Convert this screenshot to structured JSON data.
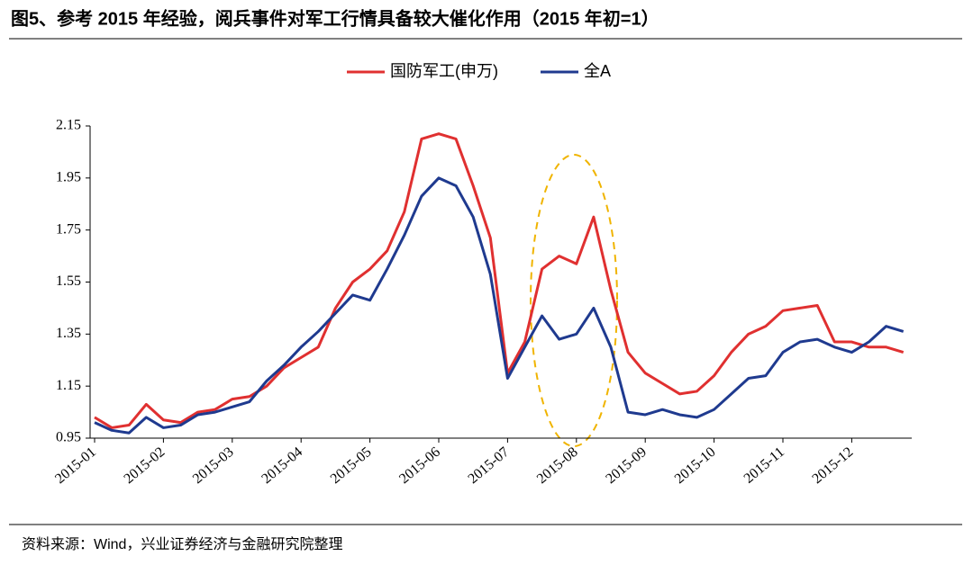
{
  "chart_data": {
    "type": "line",
    "title": "图5、参考 2015 年经验，阅兵事件对军工行情具备较大催化作用（2015 年初=1）",
    "source": "资料来源：Wind，兴业证券经济与金融研究院整理",
    "categories": [
      "2015-01",
      null,
      null,
      null,
      "2015-02",
      null,
      null,
      null,
      "2015-03",
      null,
      null,
      null,
      "2015-04",
      null,
      null,
      null,
      "2015-05",
      null,
      null,
      null,
      "2015-06",
      null,
      null,
      null,
      "2015-07",
      null,
      null,
      null,
      "2015-08",
      null,
      null,
      null,
      "2015-09",
      null,
      null,
      null,
      "2015-10",
      null,
      null,
      null,
      "2015-11",
      null,
      null,
      null,
      "2015-12",
      null,
      null,
      null
    ],
    "series": [
      {
        "name": "国防军工(申万)",
        "color": "#e03030",
        "values": [
          1.03,
          0.99,
          1.0,
          1.08,
          1.02,
          1.01,
          1.05,
          1.06,
          1.1,
          1.11,
          1.15,
          1.22,
          1.26,
          1.3,
          1.45,
          1.55,
          1.6,
          1.67,
          1.82,
          2.1,
          2.12,
          2.1,
          1.92,
          1.72,
          1.2,
          1.32,
          1.6,
          1.65,
          1.62,
          1.8,
          1.52,
          1.28,
          1.2,
          1.16,
          1.12,
          1.13,
          1.19,
          1.28,
          1.35,
          1.38,
          1.44,
          1.45,
          1.46,
          1.32,
          1.32,
          1.3,
          1.3,
          1.28
        ]
      },
      {
        "name": "全A",
        "color": "#1f3a8f",
        "values": [
          1.01,
          0.98,
          0.97,
          1.03,
          0.99,
          1.0,
          1.04,
          1.05,
          1.07,
          1.09,
          1.17,
          1.23,
          1.3,
          1.36,
          1.43,
          1.5,
          1.48,
          1.6,
          1.73,
          1.88,
          1.95,
          1.92,
          1.8,
          1.58,
          1.18,
          1.3,
          1.42,
          1.33,
          1.35,
          1.45,
          1.3,
          1.05,
          1.04,
          1.06,
          1.04,
          1.03,
          1.06,
          1.12,
          1.18,
          1.19,
          1.28,
          1.32,
          1.33,
          1.3,
          1.28,
          1.32,
          1.38,
          1.36
        ]
      }
    ],
    "ylim": [
      0.95,
      2.15
    ],
    "yticks": [
      0.95,
      1.15,
      1.35,
      1.55,
      1.75,
      1.95,
      2.15
    ],
    "grid": false,
    "legend": "top"
  }
}
